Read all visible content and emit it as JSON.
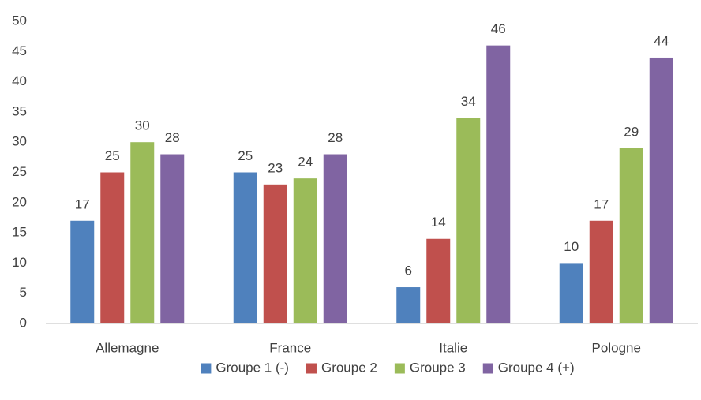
{
  "chart_data": {
    "type": "bar",
    "categories": [
      "Allemagne",
      "France",
      "Italie",
      "Pologne"
    ],
    "series": [
      {
        "name": "Groupe 1 (-)",
        "color": "#4f81bd",
        "values": [
          17,
          25,
          6,
          10
        ]
      },
      {
        "name": "Groupe 2",
        "color": "#c0504d",
        "values": [
          25,
          23,
          14,
          17
        ]
      },
      {
        "name": "Groupe 3",
        "color": "#9bbb59",
        "values": [
          30,
          24,
          34,
          29
        ]
      },
      {
        "name": "Groupe 4 (+)",
        "color": "#8064a2",
        "values": [
          28,
          28,
          46,
          44
        ]
      }
    ],
    "ylim": [
      0,
      50
    ],
    "yticks": [
      0,
      5,
      10,
      15,
      20,
      25,
      30,
      35,
      40,
      45,
      50
    ],
    "grid": false,
    "legend": "bottom"
  }
}
